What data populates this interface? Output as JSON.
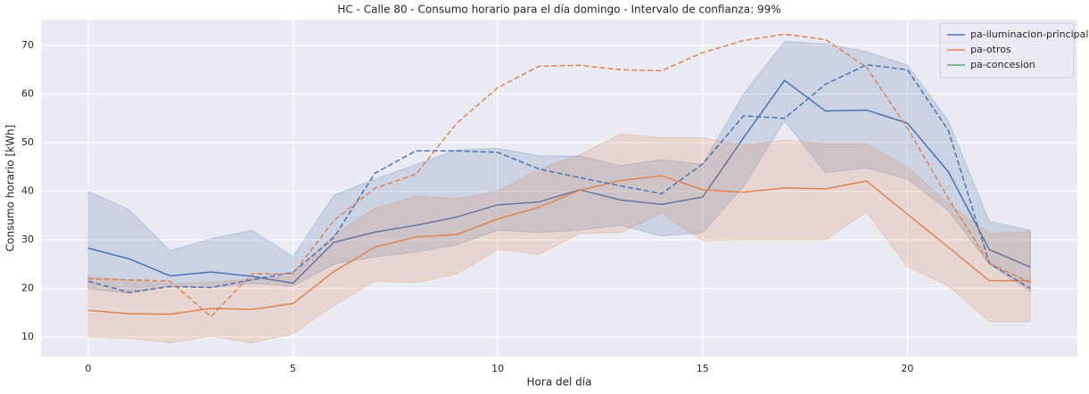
{
  "chart_data": {
    "type": "line",
    "title": "HC - Calle 80 - Consumo horario para el día domingo - Intervalo de confianza: 99%",
    "x_label": "Hora del día",
    "y_label": "Consumo horario [kWh]",
    "x": [
      0,
      1,
      2,
      3,
      4,
      5,
      6,
      7,
      8,
      9,
      10,
      11,
      12,
      13,
      14,
      15,
      16,
      17,
      18,
      19,
      20,
      21,
      22,
      23
    ],
    "xlim": [
      -1.15,
      24.15
    ],
    "xticks": [
      0,
      5,
      10,
      15,
      20
    ],
    "ylim": [
      6,
      75.3
    ],
    "yticks": [
      10,
      20,
      30,
      40,
      50,
      60,
      70
    ],
    "grid": true,
    "legend": "upper right",
    "series": [
      {
        "name": "pa-iluminacion-principal",
        "color": "#4c72b0",
        "values": [
          28.3,
          26.1,
          22.6,
          23.4,
          22.5,
          21.1,
          29.5,
          31.6,
          33.0,
          34.7,
          37.2,
          37.8,
          40.3,
          38.2,
          37.3,
          38.8,
          51.0,
          62.8,
          56.5,
          56.7,
          54.0,
          44.0,
          28.0,
          24.4
        ],
        "upper": [
          40,
          36.2,
          27.8,
          30.2,
          32,
          26.5,
          39.2,
          42.5,
          45.5,
          48.5,
          48.8,
          47.3,
          47.2,
          45.3,
          46.5,
          45.5,
          60,
          70.8,
          70.3,
          68.7,
          66,
          54.5,
          33.8,
          32
        ],
        "lower": [
          20,
          19,
          20.5,
          20.2,
          21,
          20.5,
          25,
          26.5,
          27.5,
          29,
          32,
          31.5,
          32,
          33,
          30.8,
          31.5,
          41,
          54.5,
          43.8,
          44.8,
          42.5,
          36,
          25,
          19.3
        ]
      },
      {
        "name": "pa-otros",
        "color": "#dd8452",
        "values": [
          15.5,
          14.8,
          14.7,
          15.9,
          15.7,
          16.9,
          23.5,
          28.5,
          30.6,
          31.1,
          34.3,
          36.7,
          40.2,
          42.2,
          43.2,
          40.3,
          39.8,
          40.7,
          40.5,
          42.1,
          35.3,
          28.5,
          21.6,
          21.6
        ],
        "upper": [
          22.5,
          21.7,
          21,
          21.3,
          22,
          22.5,
          31,
          36.5,
          39,
          38.5,
          40,
          44.5,
          47.5,
          51.8,
          51,
          51,
          49.5,
          50.5,
          49.8,
          49.8,
          45,
          37.5,
          31.3,
          31.7
        ],
        "lower": [
          10,
          9.8,
          8.8,
          10.2,
          8.8,
          10.7,
          16.5,
          21.5,
          21.2,
          23,
          28,
          27,
          31.3,
          31.5,
          35.5,
          29.8,
          30,
          30,
          30,
          35.7,
          24.5,
          20.5,
          13.2,
          13.2
        ]
      },
      {
        "name": "pa-concesion",
        "color": "#55a868",
        "values": [
          null,
          null,
          null,
          null,
          null,
          null,
          null,
          null,
          null,
          null,
          null,
          null,
          null,
          null,
          null,
          null,
          null,
          null,
          null,
          null,
          null,
          null,
          null,
          null
        ]
      },
      {
        "color": "#4c72b0",
        "dashed": true,
        "values": [
          21.5,
          19.2,
          20.4,
          20.2,
          21.8,
          23.3,
          30.5,
          43.7,
          48.3,
          48.3,
          48,
          44.6,
          42.8,
          41.1,
          39.5,
          45.6,
          55.5,
          55,
          62,
          66,
          65,
          52.5,
          25.2,
          20
        ]
      },
      {
        "color": "#dd8452",
        "dashed": true,
        "values": [
          22,
          21.8,
          21.5,
          14.2,
          23,
          23,
          34,
          40.6,
          43.5,
          54,
          61.3,
          65.7,
          65.9,
          65,
          64.8,
          68.5,
          71,
          72.3,
          71.2,
          65.5,
          53,
          38.5,
          25.2,
          21.2
        ]
      }
    ]
  }
}
